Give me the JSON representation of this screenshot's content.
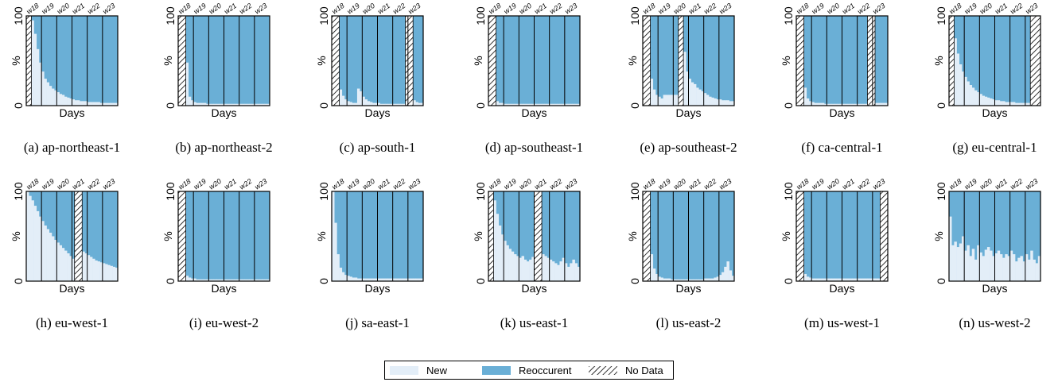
{
  "colors": {
    "new": "#e3eef8",
    "reoccurent": "#6aafd6",
    "hatch": "#000000",
    "axis": "#000000"
  },
  "legend": {
    "new_label": "New",
    "reoccurent_label": "Reoccurent",
    "nodata_label": "No Data"
  },
  "chart_data": [
    {
      "type": "area",
      "caption": "(a) ap-northeast-1",
      "xlabel": "Days",
      "ylabel": "%",
      "ylim": [
        0,
        100
      ],
      "weeks": [
        "w18",
        "w19",
        "w20",
        "w21",
        "w22",
        "w23"
      ],
      "days": 36,
      "no_data_ranges": [
        [
          0,
          1
        ]
      ],
      "new_pct": [
        100,
        100,
        95,
        80,
        63,
        48,
        38,
        30,
        26,
        22,
        19,
        17,
        15,
        13,
        12,
        10,
        9,
        8,
        7,
        6,
        6,
        5,
        5,
        5,
        4,
        4,
        4,
        4,
        4,
        3,
        3,
        3,
        3,
        3,
        3,
        3
      ]
    },
    {
      "type": "area",
      "caption": "(b) ap-northeast-2",
      "xlabel": "Days",
      "ylabel": "%",
      "ylim": [
        0,
        100
      ],
      "weeks": [
        "w18",
        "w19",
        "w20",
        "w21",
        "w22",
        "w23"
      ],
      "days": 36,
      "no_data_ranges": [
        [
          0,
          2
        ]
      ],
      "new_pct": [
        100,
        100,
        100,
        48,
        10,
        6,
        4,
        3,
        3,
        3,
        3,
        2,
        2,
        2,
        2,
        2,
        2,
        2,
        2,
        2,
        2,
        2,
        2,
        2,
        2,
        2,
        2,
        2,
        2,
        2,
        2,
        2,
        2,
        2,
        2,
        2
      ]
    },
    {
      "type": "area",
      "caption": "(c) ap-south-1",
      "xlabel": "Days",
      "ylabel": "%",
      "ylim": [
        0,
        100
      ],
      "weeks": [
        "w18",
        "w19",
        "w20",
        "w21",
        "w22",
        "w23"
      ],
      "days": 36,
      "no_data_ranges": [
        [
          0,
          2
        ],
        [
          29,
          31
        ]
      ],
      "new_pct": [
        100,
        100,
        100,
        18,
        11,
        7,
        5,
        4,
        3,
        3,
        19,
        16,
        10,
        7,
        5,
        4,
        3,
        3,
        3,
        2,
        2,
        2,
        2,
        2,
        2,
        2,
        2,
        2,
        2,
        100,
        100,
        100,
        6,
        4,
        3,
        3
      ]
    },
    {
      "type": "area",
      "caption": "(d) ap-southeast-1",
      "xlabel": "Days",
      "ylabel": "%",
      "ylim": [
        0,
        100
      ],
      "weeks": [
        "w18",
        "w19",
        "w20",
        "w21",
        "w22",
        "w23"
      ],
      "days": 36,
      "no_data_ranges": [
        [
          0,
          2
        ]
      ],
      "new_pct": [
        100,
        100,
        100,
        5,
        3,
        3,
        2,
        2,
        2,
        2,
        2,
        2,
        2,
        2,
        2,
        2,
        2,
        2,
        2,
        2,
        2,
        2,
        2,
        2,
        2,
        2,
        2,
        2,
        2,
        2,
        2,
        2,
        2,
        2,
        2,
        2
      ]
    },
    {
      "type": "area",
      "caption": "(e) ap-southeast-2",
      "xlabel": "Days",
      "ylabel": "%",
      "ylim": [
        0,
        100
      ],
      "weeks": [
        "w18",
        "w19",
        "w20",
        "w21",
        "w22",
        "w23"
      ],
      "days": 36,
      "no_data_ranges": [
        [
          0,
          2
        ],
        [
          14,
          15
        ]
      ],
      "new_pct": [
        100,
        100,
        100,
        30,
        18,
        12,
        10,
        8,
        12,
        12,
        12,
        12,
        12,
        12,
        100,
        100,
        60,
        38,
        30,
        26,
        24,
        20,
        18,
        16,
        14,
        12,
        10,
        9,
        8,
        7,
        7,
        6,
        6,
        6,
        5,
        5
      ]
    },
    {
      "type": "area",
      "caption": "(f) ca-central-1",
      "xlabel": "Days",
      "ylabel": "%",
      "ylim": [
        0,
        100
      ],
      "weeks": [
        "w18",
        "w19",
        "w20",
        "w21",
        "w22",
        "w23"
      ],
      "days": 36,
      "no_data_ranges": [
        [
          0,
          2
        ],
        [
          28,
          30
        ]
      ],
      "new_pct": [
        100,
        100,
        100,
        20,
        8,
        5,
        4,
        3,
        3,
        3,
        3,
        2,
        2,
        2,
        2,
        2,
        2,
        2,
        2,
        2,
        2,
        2,
        2,
        2,
        2,
        2,
        2,
        2,
        100,
        100,
        100,
        3,
        3,
        3,
        3,
        3
      ]
    },
    {
      "type": "area",
      "caption": "(g) eu-central-1",
      "xlabel": "Days",
      "ylabel": "%",
      "ylim": [
        0,
        100
      ],
      "weeks": [
        "w18",
        "w19",
        "w20",
        "w21",
        "w22",
        "w23"
      ],
      "days": 36,
      "no_data_ranges": [
        [
          0,
          1
        ],
        [
          32,
          35
        ]
      ],
      "new_pct": [
        100,
        100,
        75,
        58,
        46,
        38,
        32,
        27,
        23,
        20,
        17,
        15,
        13,
        11,
        10,
        9,
        8,
        7,
        6,
        6,
        5,
        5,
        4,
        4,
        4,
        4,
        3,
        3,
        3,
        3,
        3,
        3,
        100,
        100,
        100,
        100
      ]
    },
    {
      "type": "area",
      "caption": "(h) eu-west-1",
      "xlabel": "Days",
      "ylabel": "%",
      "ylim": [
        0,
        100
      ],
      "weeks": [
        "w18",
        "w19",
        "w20",
        "w21",
        "w22",
        "w23"
      ],
      "days": 36,
      "no_data_ranges": [
        [
          19,
          21
        ]
      ],
      "new_pct": [
        100,
        95,
        90,
        84,
        78,
        72,
        67,
        62,
        58,
        54,
        50,
        46,
        43,
        40,
        37,
        34,
        31,
        28,
        25,
        100,
        100,
        100,
        33,
        31,
        29,
        27,
        25,
        23,
        22,
        21,
        20,
        19,
        18,
        17,
        16,
        15
      ]
    },
    {
      "type": "area",
      "caption": "(i) eu-west-2",
      "xlabel": "Days",
      "ylabel": "%",
      "ylim": [
        0,
        100
      ],
      "weeks": [
        "w18",
        "w19",
        "w20",
        "w21",
        "w22",
        "w23"
      ],
      "days": 36,
      "no_data_ranges": [
        [
          0,
          2
        ]
      ],
      "new_pct": [
        100,
        100,
        100,
        6,
        4,
        3,
        3,
        2,
        2,
        2,
        2,
        2,
        2,
        2,
        2,
        2,
        2,
        2,
        2,
        2,
        2,
        2,
        2,
        2,
        2,
        2,
        2,
        2,
        2,
        2,
        2,
        2,
        2,
        2,
        2,
        2
      ]
    },
    {
      "type": "area",
      "caption": "(j) sa-east-1",
      "xlabel": "Days",
      "ylabel": "%",
      "ylim": [
        0,
        100
      ],
      "weeks": [
        "w18",
        "w19",
        "w20",
        "w21",
        "w22",
        "w23"
      ],
      "days": 36,
      "no_data_ranges": [],
      "new_pct": [
        100,
        65,
        30,
        15,
        10,
        7,
        6,
        5,
        4,
        4,
        3,
        3,
        3,
        3,
        3,
        3,
        3,
        3,
        3,
        3,
        3,
        3,
        3,
        3,
        3,
        3,
        3,
        3,
        3,
        3,
        3,
        3,
        3,
        3,
        3,
        3
      ]
    },
    {
      "type": "area",
      "caption": "(k) us-east-1",
      "xlabel": "Days",
      "ylabel": "%",
      "ylim": [
        0,
        100
      ],
      "weeks": [
        "w18",
        "w19",
        "w20",
        "w21",
        "w22",
        "w23"
      ],
      "days": 36,
      "no_data_ranges": [
        [
          0,
          1
        ],
        [
          18,
          20
        ]
      ],
      "new_pct": [
        100,
        100,
        90,
        75,
        62,
        52,
        45,
        40,
        36,
        33,
        30,
        28,
        26,
        28,
        24,
        22,
        24,
        27,
        100,
        100,
        100,
        30,
        28,
        26,
        24,
        22,
        20,
        18,
        22,
        26,
        20,
        16,
        20,
        24,
        20,
        16
      ]
    },
    {
      "type": "area",
      "caption": "(l) us-east-2",
      "xlabel": "Days",
      "ylabel": "%",
      "ylim": [
        0,
        100
      ],
      "weeks": [
        "w18",
        "w19",
        "w20",
        "w21",
        "w22",
        "w23"
      ],
      "days": 36,
      "no_data_ranges": [
        [
          0,
          2
        ]
      ],
      "new_pct": [
        100,
        100,
        100,
        30,
        14,
        8,
        5,
        4,
        3,
        3,
        3,
        2,
        2,
        2,
        2,
        2,
        2,
        2,
        2,
        2,
        2,
        2,
        2,
        2,
        3,
        3,
        3,
        3,
        4,
        5,
        7,
        10,
        16,
        22,
        12,
        6
      ]
    },
    {
      "type": "area",
      "caption": "(m) us-west-1",
      "xlabel": "Days",
      "ylabel": "%",
      "ylim": [
        0,
        100
      ],
      "weeks": [
        "w18",
        "w19",
        "w20",
        "w21",
        "w22",
        "w23"
      ],
      "days": 36,
      "no_data_ranges": [
        [
          0,
          2
        ],
        [
          33,
          35
        ]
      ],
      "new_pct": [
        100,
        100,
        100,
        8,
        5,
        4,
        3,
        3,
        3,
        3,
        3,
        3,
        3,
        3,
        3,
        3,
        3,
        3,
        3,
        3,
        3,
        3,
        3,
        3,
        3,
        3,
        3,
        3,
        3,
        3,
        3,
        3,
        3,
        100,
        100,
        100
      ]
    },
    {
      "type": "area",
      "caption": "(n) us-west-2",
      "xlabel": "Days",
      "ylabel": "%",
      "ylim": [
        0,
        100
      ],
      "weeks": [
        "w18",
        "w19",
        "w20",
        "w21",
        "w22",
        "w23"
      ],
      "days": 36,
      "no_data_ranges": [],
      "new_pct": [
        72,
        40,
        44,
        38,
        42,
        50,
        34,
        40,
        28,
        36,
        24,
        40,
        32,
        28,
        35,
        38,
        34,
        28,
        31,
        34,
        30,
        26,
        30,
        28,
        34,
        30,
        22,
        26,
        28,
        22,
        30,
        24,
        34,
        24,
        20,
        28
      ]
    }
  ]
}
